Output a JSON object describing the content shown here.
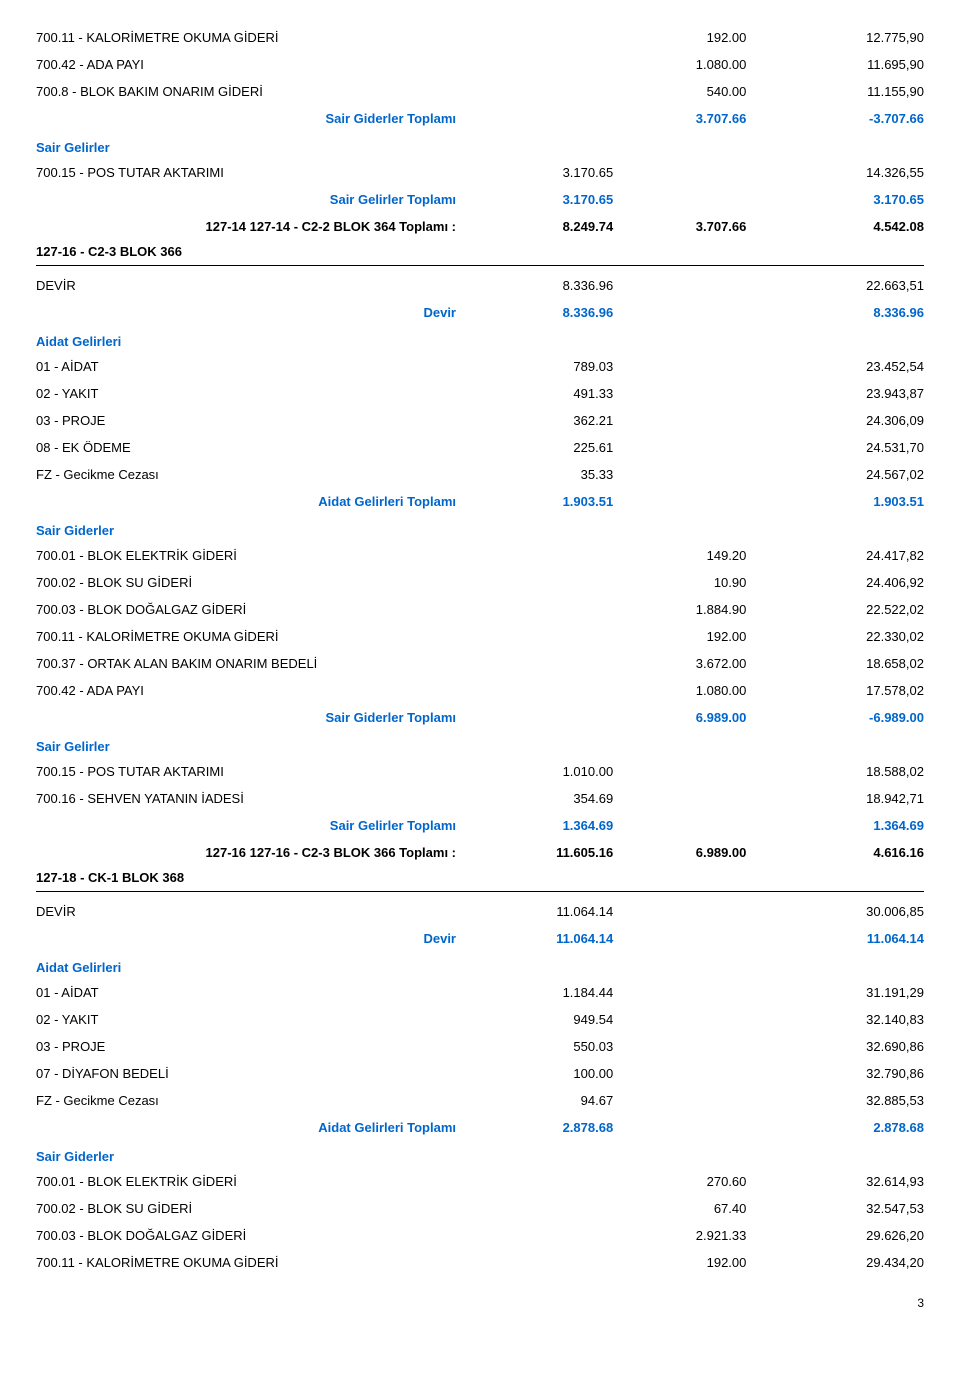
{
  "block1": {
    "rows": [
      {
        "label": "700.11 - KALORİMETRE OKUMA GİDERİ",
        "b": "192.00",
        "c": "12.775,90"
      },
      {
        "label": "700.42 - ADA PAYI",
        "b": "1.080.00",
        "c": "11.695,90"
      },
      {
        "label": "700.8 - BLOK BAKIM ONARIM GİDERİ",
        "b": "540.00",
        "c": "11.155,90"
      }
    ],
    "sair_giderler_toplami": {
      "label": "Sair Giderler Toplamı",
      "b": "3.707.66",
      "c": "-3.707.66"
    },
    "sair_gelirler_label": "Sair Gelirler",
    "pos": {
      "label": "700.15 - POS TUTAR AKTARIMI",
      "a": "3.170.65",
      "c": "14.326,55"
    },
    "sair_gelirler_toplami": {
      "label": "Sair Gelirler Toplamı",
      "a": "3.170.65",
      "c": "3.170.65"
    },
    "total": {
      "label": "127-14 127-14 - C2-2 BLOK 364 Toplamı :",
      "a": "8.249.74",
      "b": "3.707.66",
      "c": "4.542.08"
    },
    "next": "127-16 - C2-3 BLOK 366"
  },
  "block2": {
    "devir_row": {
      "label": "DEVİR",
      "a": "8.336.96",
      "c": "22.663,51"
    },
    "devir_sum": {
      "label": "Devir",
      "a": "8.336.96",
      "c": "8.336.96"
    },
    "aidat_label": "Aidat Gelirleri",
    "aidat_rows": [
      {
        "label": "01 - AİDAT",
        "a": "789.03",
        "c": "23.452,54"
      },
      {
        "label": "02 - YAKIT",
        "a": "491.33",
        "c": "23.943,87"
      },
      {
        "label": "03 - PROJE",
        "a": "362.21",
        "c": "24.306,09"
      },
      {
        "label": "08 - EK ÖDEME",
        "a": "225.61",
        "c": "24.531,70"
      },
      {
        "label": "FZ - Gecikme Cezası",
        "a": "35.33",
        "c": "24.567,02"
      }
    ],
    "aidat_toplami": {
      "label": "Aidat Gelirleri Toplamı",
      "a": "1.903.51",
      "c": "1.903.51"
    },
    "sair_giderler_label": "Sair Giderler",
    "gider_rows": [
      {
        "label": "700.01 - BLOK ELEKTRİK GİDERİ",
        "b": "149.20",
        "c": "24.417,82"
      },
      {
        "label": "700.02 - BLOK SU GİDERİ",
        "b": "10.90",
        "c": "24.406,92"
      },
      {
        "label": "700.03 - BLOK DOĞALGAZ GİDERİ",
        "b": "1.884.90",
        "c": "22.522,02"
      },
      {
        "label": "700.11 - KALORİMETRE OKUMA GİDERİ",
        "b": "192.00",
        "c": "22.330,02"
      },
      {
        "label": "700.37 - ORTAK ALAN BAKIM ONARIM BEDELİ",
        "b": "3.672.00",
        "c": "18.658,02"
      },
      {
        "label": "700.42 - ADA PAYI",
        "b": "1.080.00",
        "c": "17.578,02"
      }
    ],
    "sair_giderler_toplami": {
      "label": "Sair Giderler Toplamı",
      "b": "6.989.00",
      "c": "-6.989.00"
    },
    "sair_gelirler_label": "Sair Gelirler",
    "gelir_rows": [
      {
        "label": "700.15 - POS TUTAR AKTARIMI",
        "a": "1.010.00",
        "c": "18.588,02"
      },
      {
        "label": "700.16 - SEHVEN YATANIN İADESİ",
        "a": "354.69",
        "c": "18.942,71"
      }
    ],
    "sair_gelirler_toplami": {
      "label": "Sair Gelirler Toplamı",
      "a": "1.364.69",
      "c": "1.364.69"
    },
    "total": {
      "label": "127-16 127-16 - C2-3 BLOK 366 Toplamı :",
      "a": "11.605.16",
      "b": "6.989.00",
      "c": "4.616.16"
    },
    "next": "127-18 - CK-1 BLOK 368"
  },
  "block3": {
    "devir_row": {
      "label": "DEVİR",
      "a": "11.064.14",
      "c": "30.006,85"
    },
    "devir_sum": {
      "label": "Devir",
      "a": "11.064.14",
      "c": "11.064.14"
    },
    "aidat_label": "Aidat Gelirleri",
    "aidat_rows": [
      {
        "label": "01 - AİDAT",
        "a": "1.184.44",
        "c": "31.191,29"
      },
      {
        "label": "02 - YAKIT",
        "a": "949.54",
        "c": "32.140,83"
      },
      {
        "label": "03 - PROJE",
        "a": "550.03",
        "c": "32.690,86"
      },
      {
        "label": "07 - DİYAFON BEDELİ",
        "a": "100.00",
        "c": "32.790,86"
      },
      {
        "label": "FZ - Gecikme Cezası",
        "a": "94.67",
        "c": "32.885,53"
      }
    ],
    "aidat_toplami": {
      "label": "Aidat Gelirleri Toplamı",
      "a": "2.878.68",
      "c": "2.878.68"
    },
    "sair_giderler_label": "Sair Giderler",
    "gider_rows": [
      {
        "label": "700.01 - BLOK ELEKTRİK GİDERİ",
        "b": "270.60",
        "c": "32.614,93"
      },
      {
        "label": "700.02 - BLOK SU GİDERİ",
        "b": "67.40",
        "c": "32.547,53"
      },
      {
        "label": "700.03 - BLOK DOĞALGAZ GİDERİ",
        "b": "2.921.33",
        "c": "29.626,20"
      },
      {
        "label": "700.11 - KALORİMETRE OKUMA GİDERİ",
        "b": "192.00",
        "c": "29.434,20"
      }
    ]
  },
  "pagenum": "3"
}
